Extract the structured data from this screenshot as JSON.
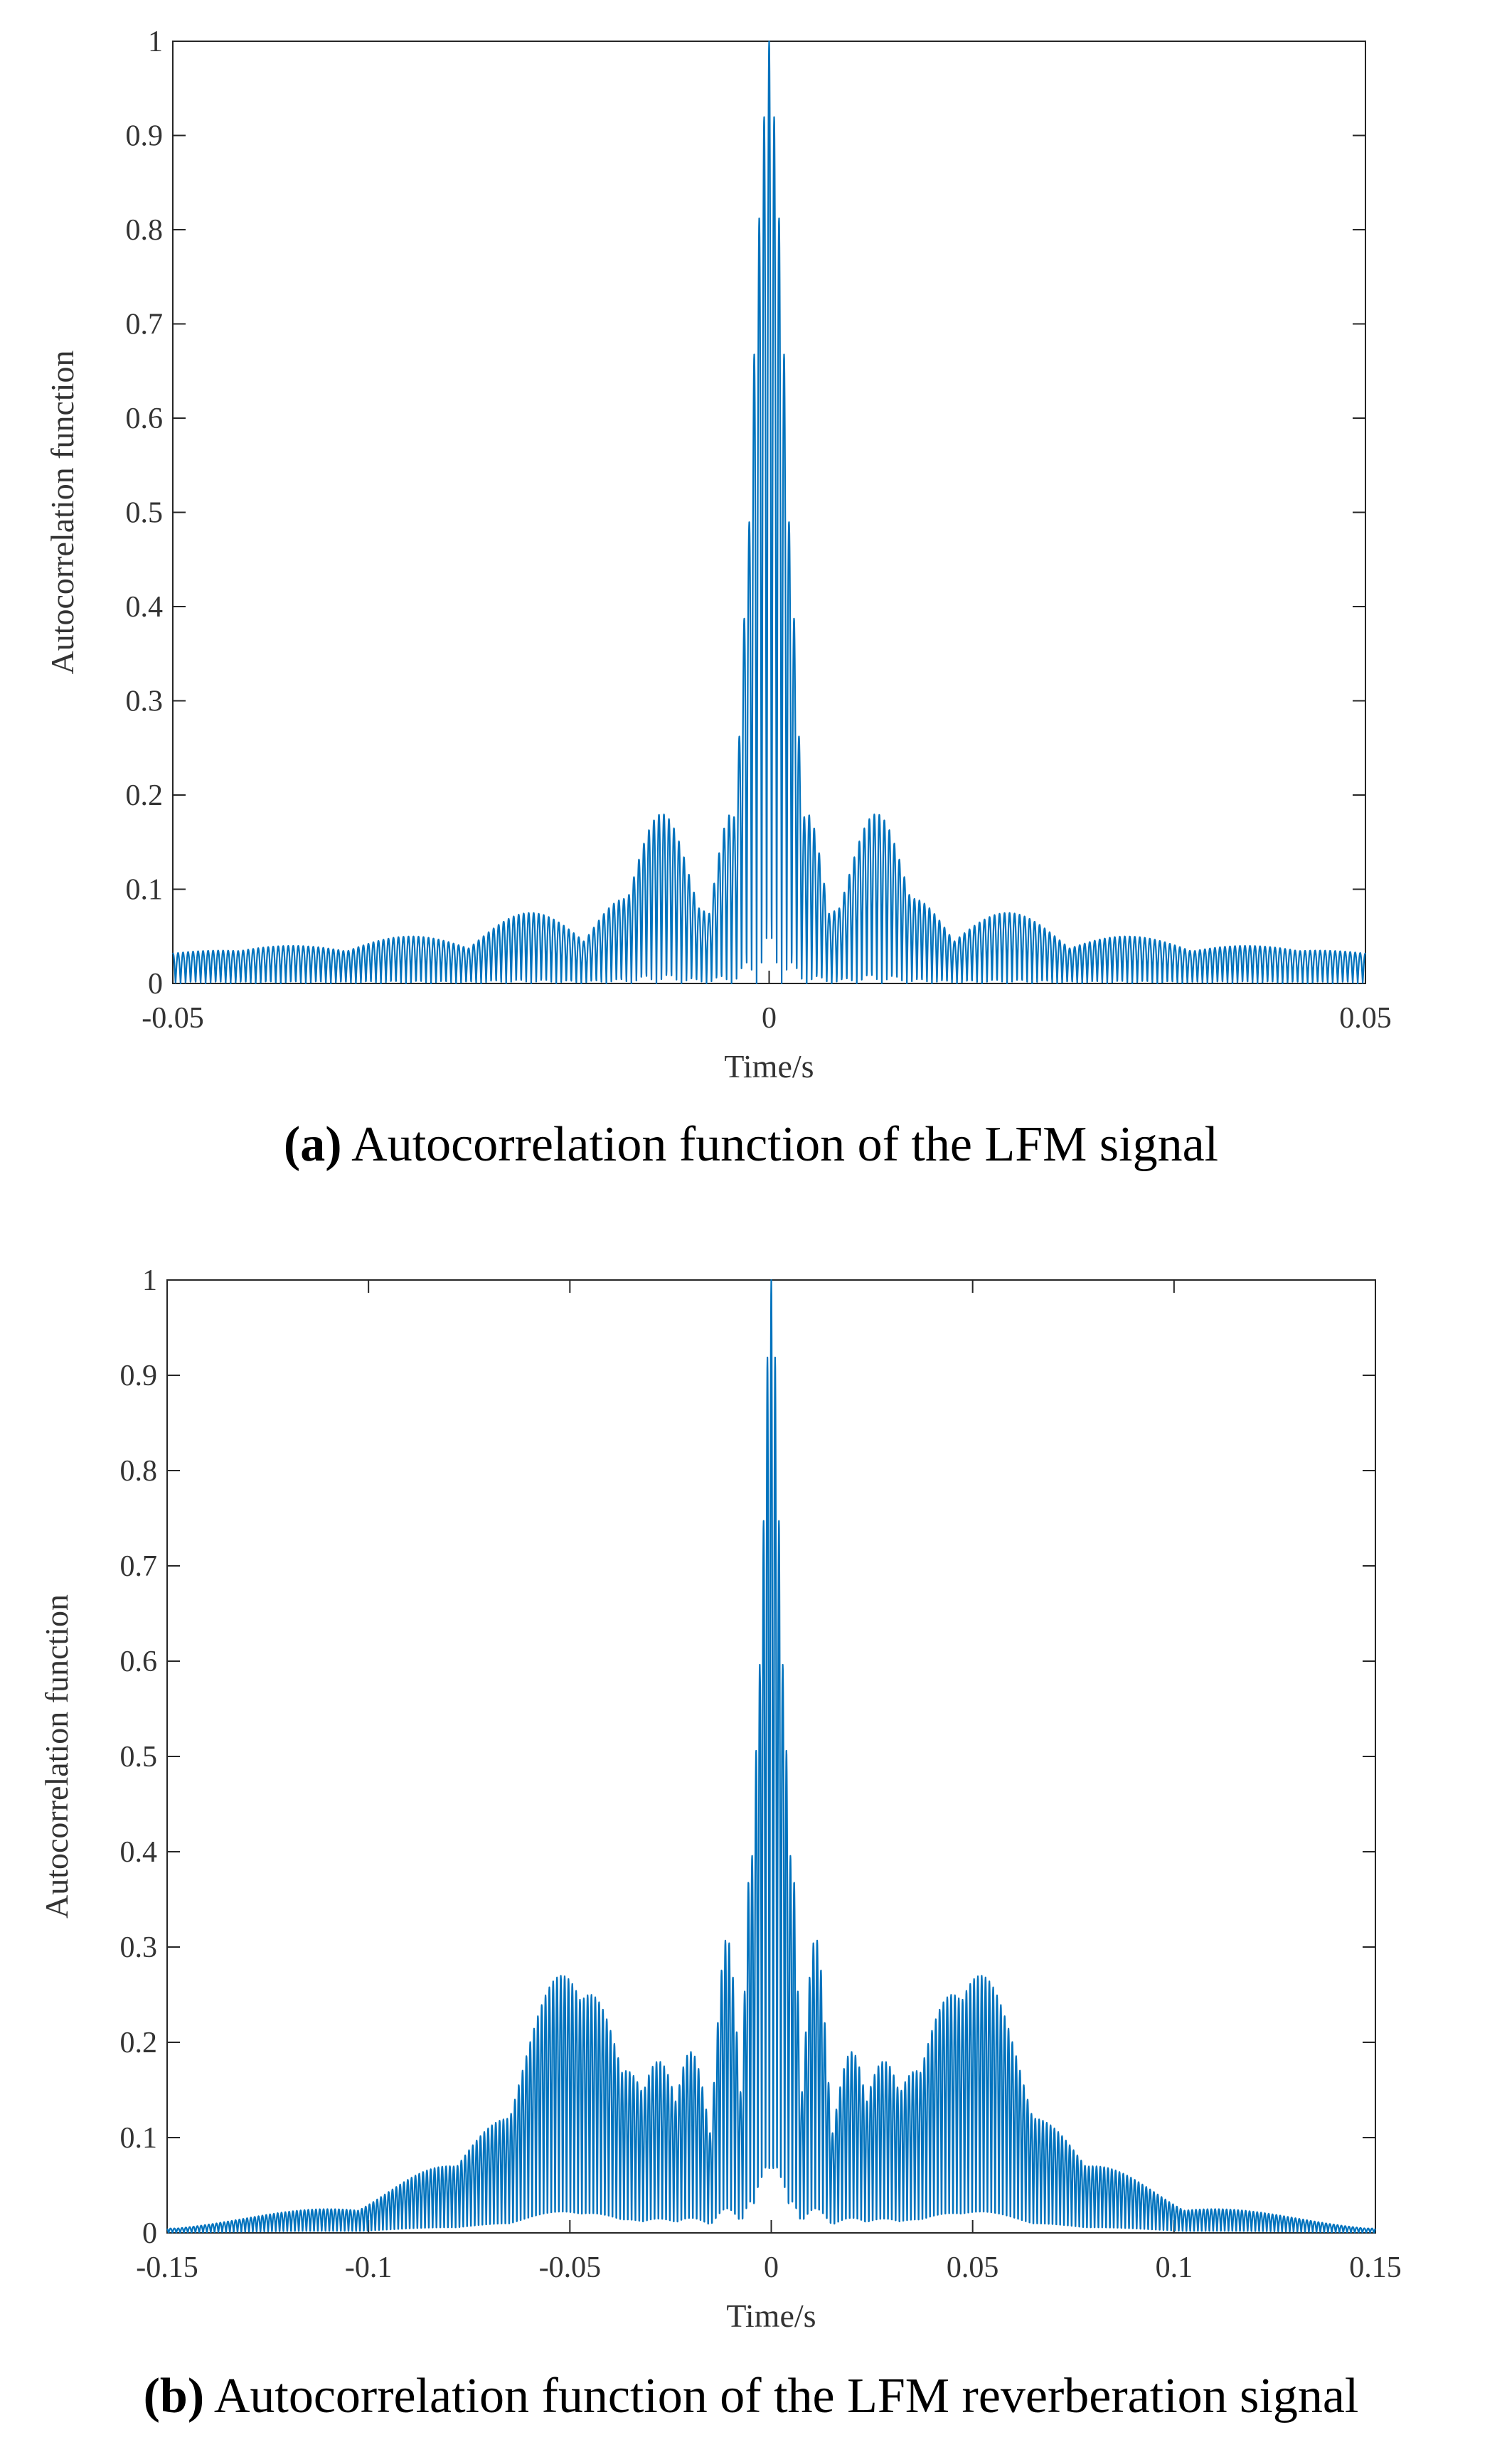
{
  "chart_data": [
    {
      "type": "line",
      "xlabel": "Time/s",
      "ylabel": "Autocorrelation function",
      "xlim": [
        -0.05,
        0.05
      ],
      "ylim": [
        0,
        1
      ],
      "xticks": [
        "-0.05",
        "0",
        "0.05"
      ],
      "xtick_values": [
        -0.05,
        0,
        0.05
      ],
      "yticks": [
        "0",
        "0.1",
        "0.2",
        "0.3",
        "0.4",
        "0.5",
        "0.6",
        "0.7",
        "0.8",
        "0.9",
        "1"
      ],
      "ytick_values": [
        0,
        0.1,
        0.2,
        0.3,
        0.4,
        0.5,
        0.6,
        0.7,
        0.8,
        0.9,
        1
      ],
      "grid": false,
      "color": "#0072BD",
      "series": [
        {
          "peaks": [
            [
              0.0,
              1.0
            ],
            [
              0.0004,
              0.92
            ],
            [
              -0.0004,
              0.92
            ],
            [
              0.0008,
              0.75
            ],
            [
              -0.0008,
              0.75
            ],
            [
              0.0013,
              0.52
            ],
            [
              -0.0013,
              0.52
            ],
            [
              0.0017,
              0.3
            ],
            [
              -0.0017,
              0.3
            ],
            [
              0.0032,
              0.18
            ],
            [
              -0.0032,
              0.18
            ],
            [
              0.0022,
              0.1
            ],
            [
              -0.0022,
              0.1
            ],
            [
              0.009,
              0.18
            ],
            [
              -0.009,
              0.18
            ],
            [
              0.006,
              0.08
            ],
            [
              -0.006,
              0.08
            ],
            [
              0.012,
              0.09
            ],
            [
              -0.012,
              0.09
            ],
            [
              0.02,
              0.075
            ],
            [
              -0.02,
              0.075
            ],
            [
              0.03,
              0.05
            ],
            [
              -0.03,
              0.05
            ],
            [
              0.04,
              0.04
            ],
            [
              -0.04,
              0.04
            ],
            [
              0.046,
              0.035
            ],
            [
              -0.046,
              0.035
            ]
          ]
        }
      ],
      "caption_label": "(a)",
      "caption_text": "Autocorrelation function of the LFM signal"
    },
    {
      "type": "line",
      "xlabel": "Time/s",
      "ylabel": "Autocorrelation function",
      "xlim": [
        -0.15,
        0.15
      ],
      "ylim": [
        0,
        1
      ],
      "xticks": [
        "-0.15",
        "-0.1",
        "-0.05",
        "0",
        "0.05",
        "0.1",
        "0.15"
      ],
      "xtick_values": [
        -0.15,
        -0.1,
        -0.05,
        0,
        0.05,
        0.1,
        0.15
      ],
      "yticks": [
        "0",
        "0.1",
        "0.2",
        "0.3",
        "0.4",
        "0.5",
        "0.6",
        "0.7",
        "0.8",
        "0.9",
        "1"
      ],
      "ytick_values": [
        0,
        0.1,
        0.2,
        0.3,
        0.4,
        0.5,
        0.6,
        0.7,
        0.8,
        0.9,
        1
      ],
      "grid": false,
      "color": "#0072BD",
      "series": [
        {
          "peaks": [
            [
              0.0,
              1.0
            ],
            [
              0.001,
              0.92
            ],
            [
              -0.001,
              0.92
            ],
            [
              0.002,
              0.75
            ],
            [
              -0.002,
              0.75
            ],
            [
              0.003,
              0.6
            ],
            [
              -0.003,
              0.6
            ],
            [
              0.005,
              0.4
            ],
            [
              -0.005,
              0.4
            ],
            [
              0.011,
              0.31
            ],
            [
              -0.011,
              0.31
            ],
            [
              0.02,
              0.19
            ],
            [
              -0.02,
              0.19
            ],
            [
              0.028,
              0.18
            ],
            [
              -0.028,
              0.18
            ],
            [
              0.036,
              0.17
            ],
            [
              -0.036,
              0.17
            ],
            [
              0.045,
              0.25
            ],
            [
              -0.045,
              0.25
            ],
            [
              0.052,
              0.27
            ],
            [
              -0.052,
              0.27
            ],
            [
              0.065,
              0.12
            ],
            [
              -0.065,
              0.12
            ],
            [
              0.08,
              0.07
            ],
            [
              -0.08,
              0.07
            ],
            [
              0.11,
              0.025
            ],
            [
              -0.11,
              0.025
            ],
            [
              0.14,
              0.005
            ],
            [
              -0.14,
              0.005
            ]
          ]
        }
      ],
      "caption_label": "(b)",
      "caption_text": "Autocorrelation function of the LFM reverberation signal"
    }
  ]
}
